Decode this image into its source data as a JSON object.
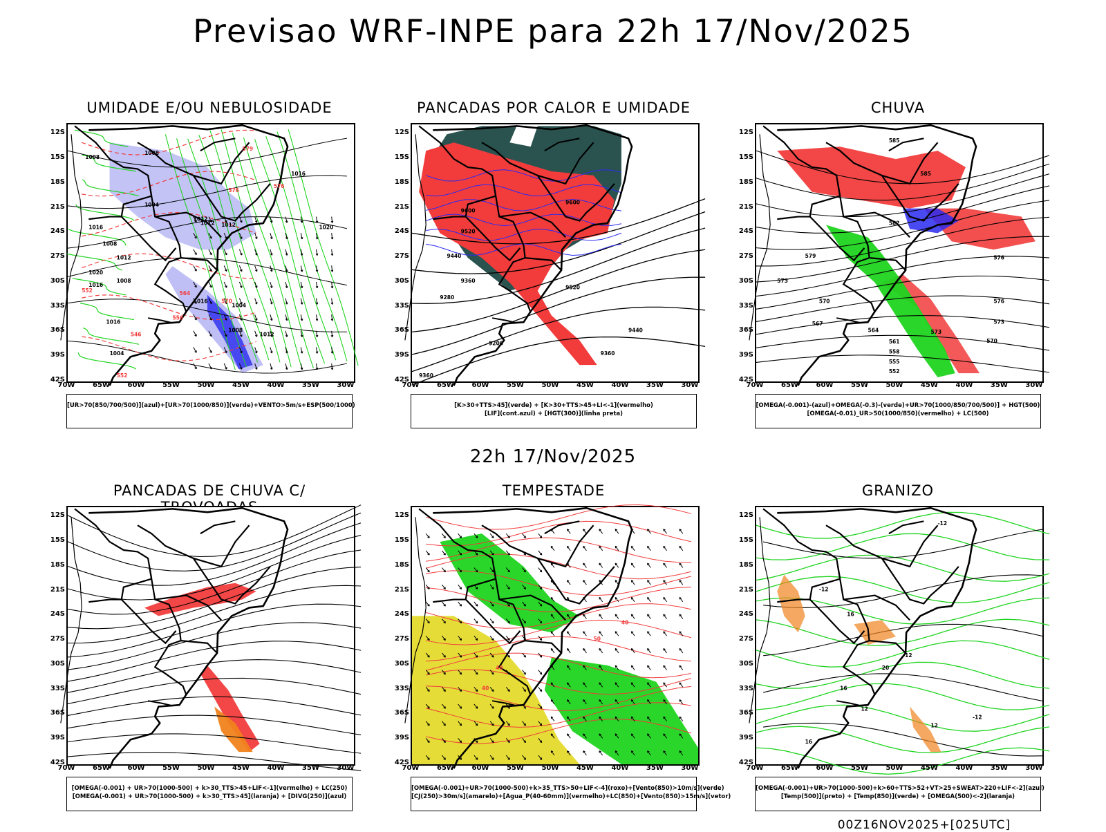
{
  "header": {
    "title": "Previsao WRF-INPE  para 22h 17/Nov/2025"
  },
  "mid_header": {
    "title": "22h 17/Nov/2025"
  },
  "footer": {
    "run": "00Z16NOV2025+[025UTC]"
  },
  "axes": {
    "lat_labels": [
      "12S",
      "15S",
      "18S",
      "21S",
      "24S",
      "27S",
      "30S",
      "33S",
      "36S",
      "39S",
      "42S"
    ],
    "lon_labels": [
      "70W",
      "65W",
      "60W",
      "55W",
      "50W",
      "45W",
      "40W",
      "35W",
      "30W"
    ]
  },
  "colors": {
    "red": "#f23c3c",
    "green": "#1fd41f",
    "blue": "#2a2af0",
    "lightblue": "#b8b8f5",
    "darkteal": "#1f4a47",
    "yellow": "#e4da2c",
    "orange": "#f0831e"
  },
  "panels": [
    {
      "title": "UMIDADE E/OU NEBULOSIDADE",
      "legend": [
        "[UR>70(850/700/500)](azul)+[UR>70(1000/850)](verde)+VENTO>5m/s+ESP(500/1000)"
      ],
      "contour_labels": [
        "1008",
        "1008",
        "1004",
        "1012",
        "1012",
        "1016",
        "1016",
        "1020",
        "1012",
        "1008",
        "1004",
        "1016",
        "1012",
        "1008",
        "1020",
        "1016",
        "1012",
        "1016",
        "1004",
        "1008",
        "552",
        "546",
        "556",
        "564",
        "570",
        "576",
        "579",
        "576",
        "552"
      ]
    },
    {
      "title": "PANCADAS POR CALOR E UMIDADE",
      "legend": [
        "[K>30+TTS>45](verde) + [K>30+TTS>45+LI<-1](vermelho)",
        "[LIF](cont.azul) + [HGT(300)](linha preta)"
      ],
      "contour_labels": [
        "9600",
        "9600",
        "9520",
        "9440",
        "9360",
        "9280",
        "9200",
        "9440",
        "9520",
        "9360",
        "9360"
      ]
    },
    {
      "title": "CHUVA",
      "legend": [
        "[OMEGA(-0.001)-(azul)+OMEGA(-0.3)-(verde)+UR>70(1000/850/700/500)] + HGT(500)",
        "[OMEGA(-0.01)_UR>50(1000/850)(vermelho) + LC(500)"
      ],
      "contour_labels": [
        "585",
        "585",
        "582",
        "579",
        "576",
        "573",
        "570",
        "567",
        "564",
        "561",
        "558",
        "555",
        "552",
        "576",
        "573",
        "570",
        "573"
      ]
    },
    {
      "title": "PANCADAS DE CHUVA C/ TROVOADAS",
      "legend": [
        "[OMEGA(-0.001) + UR>70(1000-500) + k>30_TTS>45+LIF<-1](vermelho) + LC(250)",
        "[OMEGA(-0.001) + UR>70(1000-500) + k>30_TTS>45](laranja) + [DIVG(250)](azul)"
      ],
      "contour_labels": []
    },
    {
      "title": "TEMPESTADE",
      "legend": [
        "[OMEGA(-0.001)+UR>70(1000-500)+k>35_TTS>50+LIF<-4](roxo)+[Vento(850)>10m/s](verde)",
        "[CJ(250)>30m/s](amarelo)+[Agua_P(40-60mm)](vermelho)+LC(850)+[Vento(850)>15m/s](vetor)"
      ],
      "contour_labels": [
        "40",
        "40",
        "40",
        "50"
      ]
    },
    {
      "title": "GRANIZO",
      "legend": [
        "[OMEGA(-0.001)+UR>70(1000-500)+k>60+TTS>52+VT>25+SWEAT>220+LIF<-2](azul)",
        "[Temp(500)](preto) + [Temp(850)](verde) + [OMEGA(500)<-2](laranja)"
      ],
      "contour_labels": [
        "-12",
        "-12",
        "-12",
        "-12",
        "16",
        "12",
        "12",
        "16",
        "20",
        "16"
      ]
    }
  ]
}
